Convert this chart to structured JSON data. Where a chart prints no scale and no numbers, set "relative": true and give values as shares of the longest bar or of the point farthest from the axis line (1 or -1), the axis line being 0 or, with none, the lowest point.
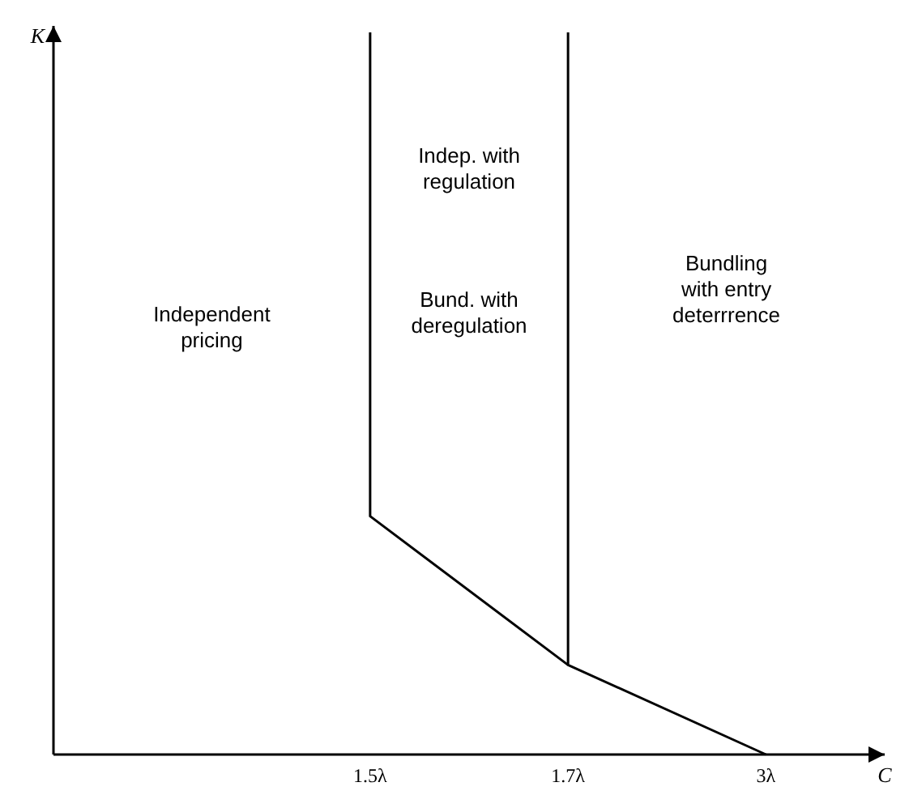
{
  "chart_data": {
    "type": "line",
    "relative": true,
    "xlabel": "C",
    "categories": [
      "1.5λ",
      "1.7λ",
      "3λ"
    ],
    "line_style": "solid",
    "series": [
      {
        "x": [
          "1.5λ",
          "1.5λ",
          "1.7λ"
        ],
        "values": [
          1,
          0.33,
          0.124
        ],
        "color": "#000000"
      },
      {
        "x": [
          "1.7λ",
          "1.7λ",
          "3λ"
        ],
        "values": [
          1,
          0.124,
          0
        ],
        "color": "#000000"
      }
    ],
    "annotations": [
      "K",
      "Independent pricing",
      "Indep. with regulation",
      "Bund. with deregulation",
      "Bundling with entry deterrrence"
    ]
  }
}
